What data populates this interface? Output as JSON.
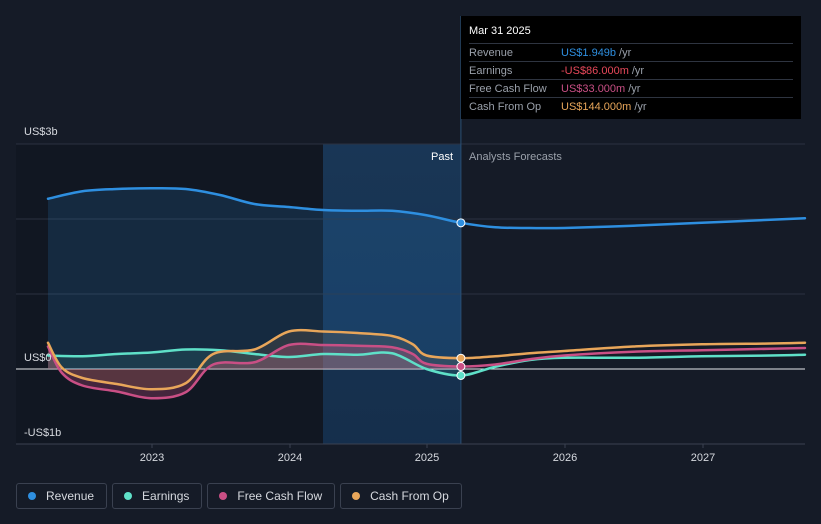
{
  "tooltip": {
    "date": "Mar 31 2025",
    "rows": [
      {
        "label": "Revenue",
        "value": "US$1.949b",
        "unit": "/yr",
        "color": "#2e8fe0"
      },
      {
        "label": "Earnings",
        "value": "-US$86.000m",
        "unit": "/yr",
        "color": "#e8485a"
      },
      {
        "label": "Free Cash Flow",
        "value": "US$33.000m",
        "unit": "/yr",
        "color": "#c94f85"
      },
      {
        "label": "Cash From Op",
        "value": "US$144.000m",
        "unit": "/yr",
        "color": "#e8a65a"
      }
    ]
  },
  "labels": {
    "past": "Past",
    "forecast": "Analysts Forecasts"
  },
  "legend": [
    {
      "label": "Revenue",
      "color": "#2e8fe0"
    },
    {
      "label": "Earnings",
      "color": "#5fe0c8"
    },
    {
      "label": "Free Cash Flow",
      "color": "#c94f85"
    },
    {
      "label": "Cash From Op",
      "color": "#e8a65a"
    }
  ],
  "chart_data": {
    "type": "line",
    "y_tick_labels": [
      "US$3b",
      "US$0",
      "-US$1b"
    ],
    "ylim": [
      -1000,
      3000
    ],
    "x_tick_labels": [
      "2023",
      "2024",
      "2025",
      "2026",
      "2027"
    ],
    "x_range": [
      2022.25,
      2027.75
    ],
    "past_start": 2024.25,
    "forecast_start": 2025.25,
    "grid": true,
    "series": [
      {
        "name": "Revenue",
        "color": "#2e8fe0",
        "x": [
          2022.25,
          2022.5,
          2022.75,
          2023.0,
          2023.25,
          2023.5,
          2023.75,
          2024.0,
          2024.25,
          2024.5,
          2024.75,
          2025.0,
          2025.25,
          2025.5,
          2025.75,
          2026.0,
          2026.5,
          2027.0,
          2027.5,
          2027.75
        ],
        "y": [
          2270,
          2370,
          2400,
          2410,
          2400,
          2320,
          2200,
          2160,
          2120,
          2110,
          2110,
          2050,
          1949,
          1890,
          1880,
          1880,
          1910,
          1950,
          1990,
          2010
        ]
      },
      {
        "name": "Earnings",
        "color": "#5fe0c8",
        "x": [
          2022.25,
          2022.5,
          2022.75,
          2023.0,
          2023.25,
          2023.5,
          2023.75,
          2024.0,
          2024.25,
          2024.5,
          2024.75,
          2025.0,
          2025.25,
          2025.5,
          2025.75,
          2026.0,
          2026.5,
          2027.0,
          2027.5,
          2027.75
        ],
        "y": [
          180,
          170,
          200,
          220,
          260,
          250,
          200,
          160,
          200,
          190,
          210,
          0,
          -86,
          30,
          120,
          150,
          150,
          170,
          180,
          190
        ]
      },
      {
        "name": "Free Cash Flow",
        "color": "#c94f85",
        "x": [
          2022.25,
          2022.35,
          2022.5,
          2022.75,
          2023.0,
          2023.25,
          2023.45,
          2023.75,
          2024.0,
          2024.25,
          2024.5,
          2024.75,
          2024.9,
          2025.0,
          2025.25,
          2025.5,
          2025.75,
          2026.0,
          2026.5,
          2027.0,
          2027.5,
          2027.75
        ],
        "y": [
          300,
          -50,
          -220,
          -300,
          -390,
          -310,
          60,
          90,
          320,
          320,
          310,
          290,
          200,
          70,
          33,
          60,
          130,
          180,
          230,
          250,
          270,
          280
        ]
      },
      {
        "name": "Cash From Op",
        "color": "#e8a65a",
        "x": [
          2022.25,
          2022.35,
          2022.5,
          2022.75,
          2023.0,
          2023.25,
          2023.45,
          2023.75,
          2024.0,
          2024.25,
          2024.5,
          2024.75,
          2024.9,
          2025.0,
          2025.25,
          2025.5,
          2025.75,
          2026.0,
          2026.5,
          2027.0,
          2027.5,
          2027.75
        ],
        "y": [
          350,
          20,
          -120,
          -200,
          -270,
          -190,
          200,
          260,
          500,
          500,
          480,
          440,
          330,
          180,
          144,
          170,
          210,
          240,
          300,
          330,
          340,
          350
        ]
      }
    ],
    "highlight_x": 2025.25
  }
}
